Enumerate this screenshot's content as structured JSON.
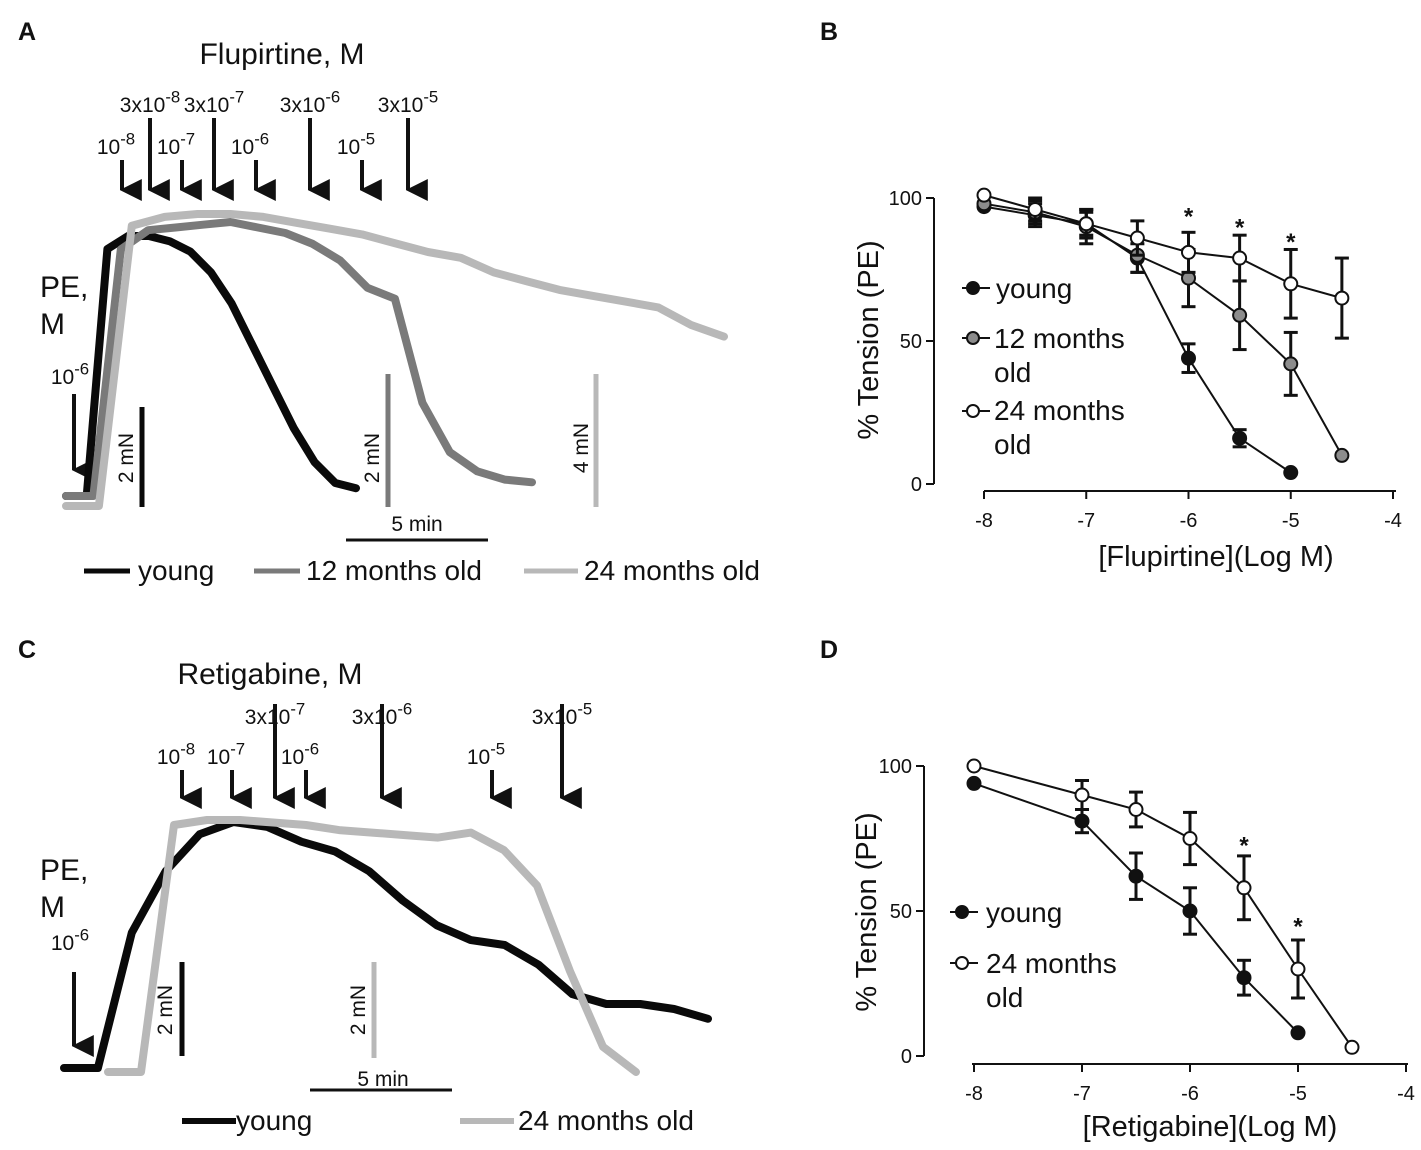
{
  "chart_data": [
    {
      "panel": "A",
      "type": "line",
      "title": "Flupirtine, M",
      "agonist": {
        "name": "PE,",
        "unit": "M",
        "conc": "10",
        "exp": "-6"
      },
      "doses": [
        {
          "base": "10",
          "exp": "-8",
          "tier": "low"
        },
        {
          "base": "3x10",
          "exp": "-8",
          "tier": "high"
        },
        {
          "base": "10",
          "exp": "-7",
          "tier": "low"
        },
        {
          "base": "3x10",
          "exp": "-7",
          "tier": "high"
        },
        {
          "base": "10",
          "exp": "-6",
          "tier": "low"
        },
        {
          "base": "3x10",
          "exp": "-6",
          "tier": "high"
        },
        {
          "base": "10",
          "exp": "-5",
          "tier": "low"
        },
        {
          "base": "3x10",
          "exp": "-5",
          "tier": "high"
        }
      ],
      "scale_bars": {
        "time": "5 min",
        "tension_young": "2 mN",
        "tension_12m": "2 mN",
        "tension_24m": "4 mN"
      },
      "series": [
        {
          "name": "young",
          "color": "#0a0a0a",
          "values": [
            0,
            0,
            0.95,
            1.0,
            1.0,
            0.98,
            0.94,
            0.86,
            0.74,
            0.58,
            0.42,
            0.26,
            0.13,
            0.05,
            0.03
          ]
        },
        {
          "name": "12 months old",
          "color": "#7a7a7a",
          "values": [
            0,
            0,
            0.9,
            0.97,
            0.98,
            0.99,
            1.0,
            0.98,
            0.96,
            0.92,
            0.86,
            0.76,
            0.72,
            0.34,
            0.16,
            0.09,
            0.06,
            0.05
          ]
        },
        {
          "name": "24 months old",
          "color": "#b8b8b8",
          "values": [
            0,
            0,
            0.96,
            0.99,
            1.0,
            1.0,
            0.99,
            0.97,
            0.95,
            0.93,
            0.9,
            0.87,
            0.85,
            0.8,
            0.77,
            0.74,
            0.72,
            0.7,
            0.68,
            0.62,
            0.58
          ]
        }
      ]
    },
    {
      "panel": "B",
      "type": "line",
      "xlabel": "[Flupirtine](Log M)",
      "ylabel": "% Tension (PE)",
      "xlim": [
        -8,
        -4
      ],
      "ylim": [
        0,
        100
      ],
      "xticks": [
        -8,
        -7,
        -6,
        -5,
        -4
      ],
      "yticks": [
        0,
        50,
        100
      ],
      "series": [
        {
          "name": "young",
          "marker": "filled-black",
          "x": [
            -8,
            -7.5,
            -7,
            -6.5,
            -6,
            -5.5,
            -5
          ],
          "y": [
            97,
            94,
            91,
            79,
            44,
            16,
            4
          ],
          "err": [
            2,
            4,
            5,
            5,
            5,
            3,
            1
          ]
        },
        {
          "name": "12 months old",
          "marker": "filled-gray",
          "x": [
            -8,
            -7.5,
            -7,
            -6.5,
            -6,
            -5.5,
            -5,
            -4.5
          ],
          "y": [
            98,
            95,
            90,
            80,
            72,
            59,
            42,
            10
          ],
          "err": [
            2,
            4,
            6,
            6,
            10,
            12,
            11,
            2
          ]
        },
        {
          "name": "24 months old",
          "marker": "open",
          "x": [
            -8,
            -7.5,
            -7,
            -6.5,
            -6,
            -5.5,
            -5,
            -4.5
          ],
          "y": [
            101,
            96,
            91,
            86,
            81,
            79,
            70,
            65
          ],
          "err": [
            2,
            4,
            4,
            6,
            7,
            8,
            12,
            14
          ]
        }
      ],
      "significance": [
        {
          "x": -6,
          "y": 95,
          "label": "*"
        },
        {
          "x": -5.5,
          "y": 91,
          "label": "*"
        },
        {
          "x": -5,
          "y": 86,
          "label": "*"
        }
      ]
    },
    {
      "panel": "C",
      "type": "line",
      "title": "Retigabine, M",
      "agonist": {
        "name": "PE,",
        "unit": "M",
        "conc": "10",
        "exp": "-6"
      },
      "doses": [
        {
          "base": "10",
          "exp": "-8",
          "tier": "low"
        },
        {
          "base": "10",
          "exp": "-7",
          "tier": "low"
        },
        {
          "base": "3x10",
          "exp": "-7",
          "tier": "high"
        },
        {
          "base": "10",
          "exp": "-6",
          "tier": "low"
        },
        {
          "base": "3x10",
          "exp": "-6",
          "tier": "high"
        },
        {
          "base": "10",
          "exp": "-5",
          "tier": "low"
        },
        {
          "base": "3x10",
          "exp": "-5",
          "tier": "high"
        }
      ],
      "scale_bars": {
        "time": "5 min",
        "tension_young": "2 mN",
        "tension_24m": "2 mN"
      },
      "series": [
        {
          "name": "young",
          "color": "#0a0a0a",
          "values": [
            0,
            0,
            0.55,
            0.8,
            0.95,
            1.0,
            0.98,
            0.92,
            0.88,
            0.8,
            0.68,
            0.58,
            0.52,
            0.5,
            0.42,
            0.3,
            0.26,
            0.26,
            0.24,
            0.2
          ]
        },
        {
          "name": "24 months old",
          "color": "#b8b8b8",
          "values": [
            0,
            0,
            0.98,
            1.0,
            1.0,
            0.99,
            0.98,
            0.96,
            0.95,
            0.94,
            0.93,
            0.95,
            0.88,
            0.74,
            0.4,
            0.1,
            0.0
          ]
        }
      ]
    },
    {
      "panel": "D",
      "type": "line",
      "xlabel": "[Retigabine](Log M)",
      "ylabel": "% Tension (PE)",
      "xlim": [
        -8,
        -4
      ],
      "ylim": [
        0,
        100
      ],
      "xticks": [
        -8,
        -7,
        -6,
        -5,
        -4
      ],
      "yticks": [
        0,
        50,
        100
      ],
      "series": [
        {
          "name": "young",
          "marker": "filled-black",
          "x": [
            -8,
            -7,
            -6.5,
            -6,
            -5.5,
            -5
          ],
          "y": [
            94,
            81,
            62,
            50,
            27,
            8
          ],
          "err": [
            2,
            4,
            8,
            8,
            6,
            1
          ]
        },
        {
          "name": "24 months old",
          "marker": "open",
          "x": [
            -8,
            -7,
            -6.5,
            -6,
            -5.5,
            -5,
            -4.5
          ],
          "y": [
            100,
            90,
            85,
            75,
            58,
            30,
            3
          ],
          "err": [
            2,
            5,
            6,
            9,
            11,
            10,
            1
          ]
        }
      ],
      "significance": [
        {
          "x": -5.5,
          "y": 74,
          "label": "*"
        },
        {
          "x": -5,
          "y": 46,
          "label": "*"
        }
      ]
    }
  ]
}
